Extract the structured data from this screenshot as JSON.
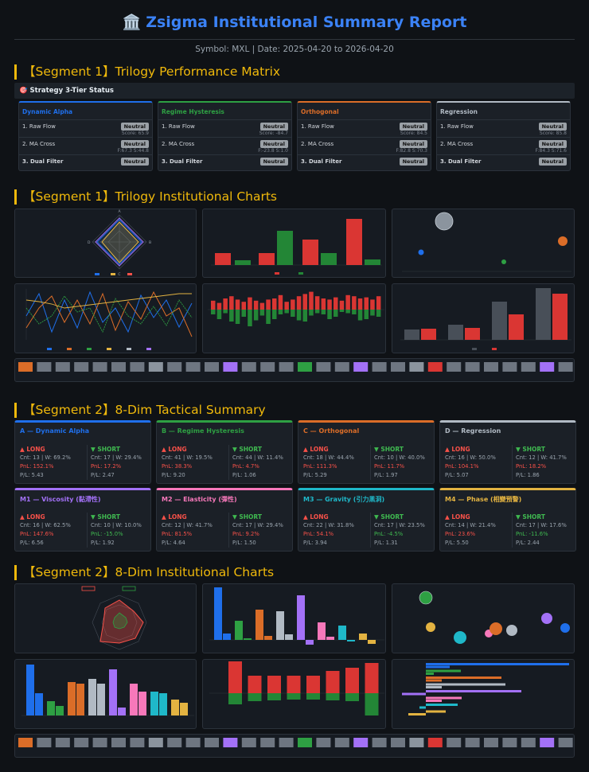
{
  "header": {
    "icon": "🏛️",
    "title": "Zsigma Institutional Summary Report",
    "subtitle": "Symbol: MXL | Date: 2025-04-20 to 2026-04-20"
  },
  "sections": {
    "s1": "【Segment 1】Trilogy Performance Matrix",
    "s2": "【Segment 1】Trilogy Institutional Charts",
    "s3": "【Segment 2】8-Dim Tactical Summary",
    "s4": "【Segment 2】8-Dim Institutional Charts"
  },
  "status_bar": "🎯 Strategy 3-Tier Status",
  "tiers": [
    {
      "name": "Dynamic Alpha",
      "color": "#1f6feb",
      "r1": "1. Raw Flow",
      "r1b": "Neutral",
      "r1s": "Score: 65.9",
      "r2": "2. MA Cross",
      "r2b": "Neutral",
      "r2s": "F:67.3 S:44.8",
      "r3": "3. Dual Filter",
      "r3b": "Neutral"
    },
    {
      "name": "Regime Hysteresis",
      "color": "#2ea043",
      "r1": "1. Raw Flow",
      "r1b": "Neutral",
      "r1s": "Score: -84.7",
      "r2": "2. MA Cross",
      "r2b": "Neutral",
      "r2s": "F:-23.8 S:1.0",
      "r3": "3. Dual Filter",
      "r3b": "Neutral"
    },
    {
      "name": "Orthogonal",
      "color": "#db6d28",
      "r1": "1. Raw Flow",
      "r1b": "Neutral",
      "r1s": "Score: 84.5",
      "r2": "2. MA Cross",
      "r2b": "Neutral",
      "r2s": "F:82.8 S:70.3",
      "r3": "3. Dual Filter",
      "r3b": "Neutral"
    },
    {
      "name": "Regression",
      "color": "#b1bac4",
      "r1": "1. Raw Flow",
      "r1b": "Neutral",
      "r1s": "Score: 85.8",
      "r2": "2. MA Cross",
      "r2b": "Neutral",
      "r2s": "F:84.3 S:71.6",
      "r3": "3. Dual Filter",
      "r3b": "Neutral"
    }
  ],
  "dims": [
    {
      "name": "A — Dynamic Alpha",
      "color": "#1f6feb",
      "long": "▲ LONG",
      "short": "▼ SHORT",
      "l1": "Cnt: 13 | W: 69.2%",
      "l2": "PnL: 152.1%",
      "l3": "P/L: 5.43",
      "s1": "Cnt: 17 | W: 29.4%",
      "s2": "PnL: 17.2%",
      "s3": "P/L: 2.47"
    },
    {
      "name": "B — Regime Hysteresis",
      "color": "#2ea043",
      "long": "▲ LONG",
      "short": "▼ SHORT",
      "l1": "Cnt: 41 | W: 19.5%",
      "l2": "PnL: 38.3%",
      "l3": "P/L: 9.20",
      "s1": "Cnt: 44 | W: 11.4%",
      "s2": "PnL: 4.7%",
      "s3": "P/L: 1.06"
    },
    {
      "name": "C — Orthogonal",
      "color": "#db6d28",
      "long": "▲ LONG",
      "short": "▼ SHORT",
      "l1": "Cnt: 18 | W: 44.4%",
      "l2": "PnL: 111.3%",
      "l3": "P/L: 5.29",
      "s1": "Cnt: 10 | W: 40.0%",
      "s2": "PnL: 11.7%",
      "s3": "P/L: 1.97"
    },
    {
      "name": "D — Regression",
      "color": "#b1bac4",
      "long": "▲ LONG",
      "short": "▼ SHORT",
      "l1": "Cnt: 16 | W: 50.0%",
      "l2": "PnL: 104.1%",
      "l3": "P/L: 5.07",
      "s1": "Cnt: 12 | W: 41.7%",
      "s2": "PnL: 18.2%",
      "s3": "P/L: 1.86"
    },
    {
      "name": "M1 — Viscosity (黏滯性)",
      "color": "#a371f7",
      "long": "▲ LONG",
      "short": "▼ SHORT",
      "l1": "Cnt: 16 | W: 62.5%",
      "l2": "PnL: 147.6%",
      "l3": "P/L: 6.56",
      "s1": "Cnt: 10 | W: 10.0%",
      "s2": "PnL: -15.0%",
      "s3": "P/L: 1.92"
    },
    {
      "name": "M2 — Elasticity (彈性)",
      "color": "#f778ba",
      "long": "▲ LONG",
      "short": "▼ SHORT",
      "l1": "Cnt: 12 | W: 41.7%",
      "l2": "PnL: 81.5%",
      "l3": "P/L: 4.64",
      "s1": "Cnt: 17 | W: 29.4%",
      "s2": "PnL: 9.2%",
      "s3": "P/L: 1.50"
    },
    {
      "name": "M3 — Gravity (引力黑洞)",
      "color": "#1fb8c9",
      "long": "▲ LONG",
      "short": "▼ SHORT",
      "l1": "Cnt: 22 | W: 31.8%",
      "l2": "PnL: 54.1%",
      "l3": "P/L: 3.94",
      "s1": "Cnt: 17 | W: 23.5%",
      "s2": "PnL: -4.5%",
      "s3": "P/L: 1.31"
    },
    {
      "name": "M4 — Phase (相變預警)",
      "color": "#e3b341",
      "long": "▲ LONG",
      "short": "▼ SHORT",
      "l1": "Cnt: 14 | W: 21.4%",
      "l2": "PnL: 23.6%",
      "l3": "P/L: 5.50",
      "s1": "Cnt: 17 | W: 17.6%",
      "s2": "PnL: -11.6%",
      "s3": "P/L: 2.44"
    }
  ],
  "colors": {
    "long": "#f85149",
    "short": "#3fb950",
    "accent": "#f0b90b",
    "title": "#3b82f6"
  }
}
